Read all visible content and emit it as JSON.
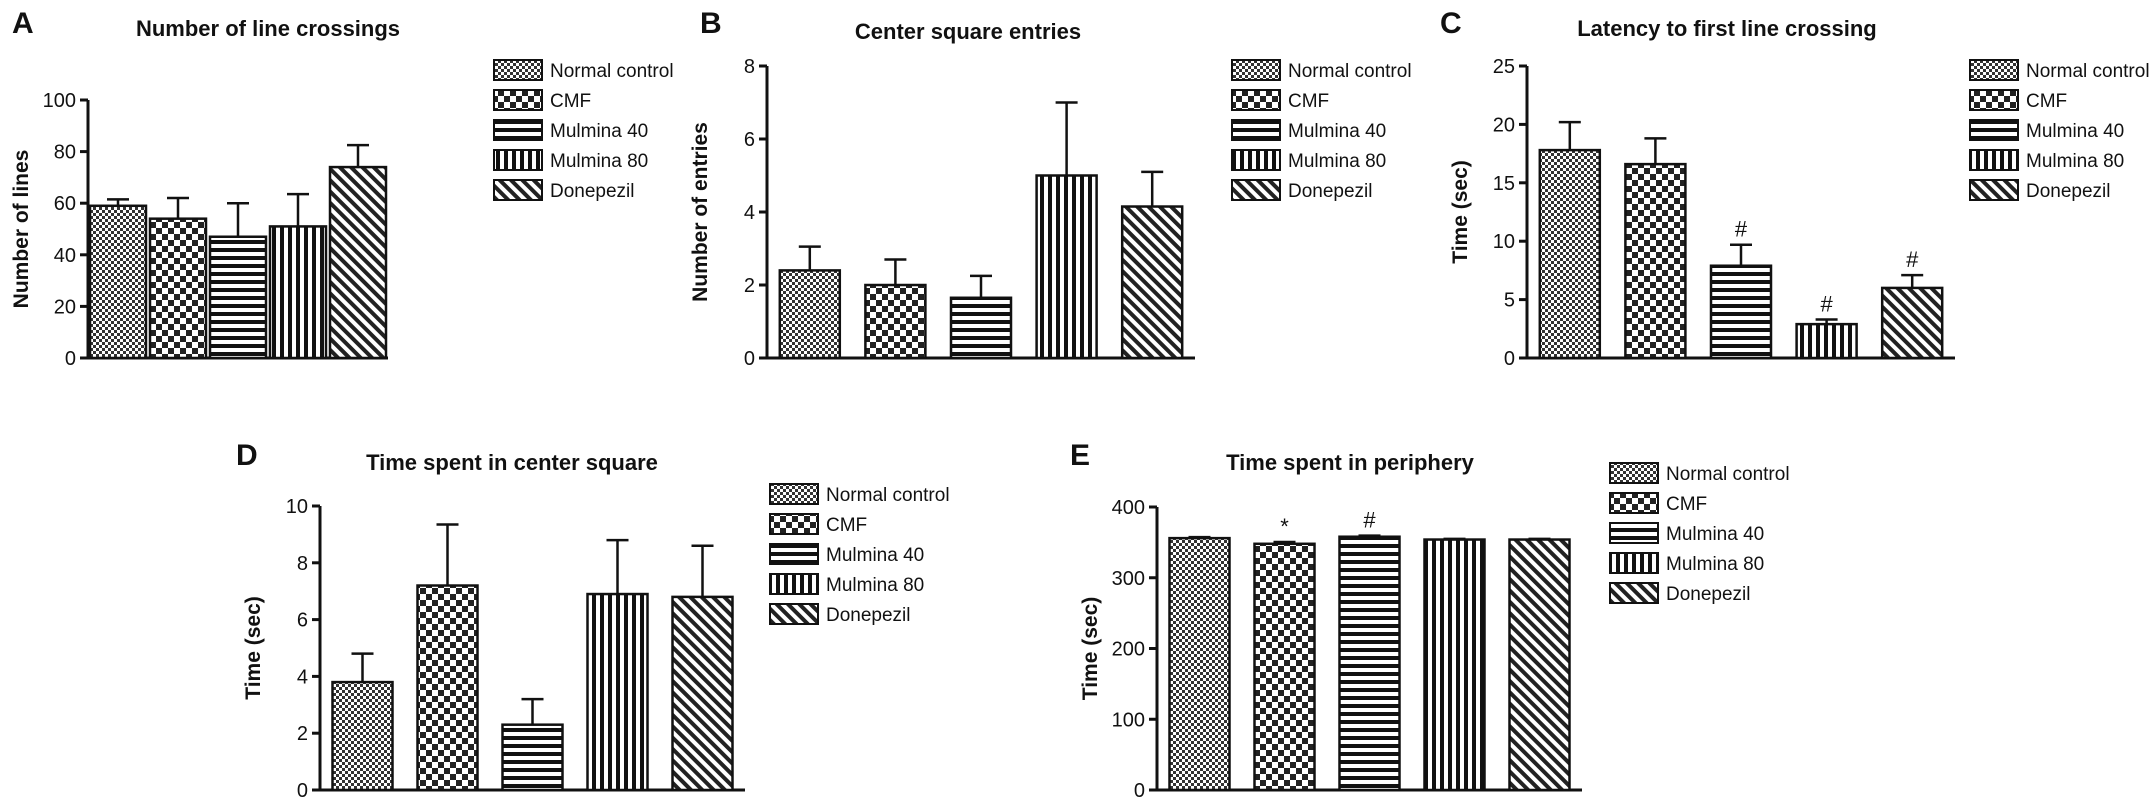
{
  "legend": [
    "Normal control",
    "CMF",
    "Mulmina 40",
    "Mulmina 80",
    "Donepezil"
  ],
  "chart_data": [
    {
      "panel": "A",
      "type": "bar",
      "title": "Number of line crossings",
      "ylabel": "Number of lines",
      "xlabel": "",
      "categories": [
        "Normal control",
        "CMF",
        "Mulmina 40",
        "Mulmina 80",
        "Donepezil"
      ],
      "values": [
        59,
        54,
        47,
        51,
        74
      ],
      "errors": [
        2.5,
        8,
        13,
        12.5,
        8.5
      ],
      "annotations": [
        "",
        "",
        "",
        "",
        ""
      ],
      "ylim": [
        0,
        100
      ],
      "yticks": [
        0,
        20,
        40,
        60,
        80,
        100
      ],
      "grid": false,
      "legend_position": "right"
    },
    {
      "panel": "B",
      "type": "bar",
      "title": "Center square entries",
      "ylabel": "Number of entries",
      "xlabel": "",
      "categories": [
        "Normal control",
        "CMF",
        "Mulmina 40",
        "Mulmina 80",
        "Donepezil"
      ],
      "values": [
        2.4,
        2.0,
        1.65,
        5.0,
        4.15
      ],
      "errors": [
        0.65,
        0.7,
        0.6,
        2.0,
        0.95
      ],
      "annotations": [
        "",
        "",
        "",
        "",
        ""
      ],
      "ylim": [
        0,
        8
      ],
      "yticks": [
        0,
        2,
        4,
        6,
        8
      ],
      "grid": false,
      "legend_position": "right"
    },
    {
      "panel": "C",
      "type": "bar",
      "title": "Latency to first line crossing",
      "ylabel": "Time (sec)",
      "xlabel": "",
      "categories": [
        "Normal control",
        "CMF",
        "Mulmina 40",
        "Mulmina 80",
        "Donepezil"
      ],
      "values": [
        17.8,
        16.6,
        7.9,
        2.9,
        6.0
      ],
      "errors": [
        2.4,
        2.2,
        1.8,
        0.4,
        1.1
      ],
      "annotations": [
        "",
        "",
        "#",
        "#",
        "#"
      ],
      "ylim": [
        0,
        25
      ],
      "yticks": [
        0,
        5,
        10,
        15,
        20,
        25
      ],
      "grid": false,
      "legend_position": "right"
    },
    {
      "panel": "D",
      "type": "bar",
      "title": "Time spent in center square",
      "ylabel": "Time (sec)",
      "xlabel": "",
      "categories": [
        "Normal control",
        "CMF",
        "Mulmina 40",
        "Mulmina 80",
        "Donepezil"
      ],
      "values": [
        3.8,
        7.2,
        2.3,
        6.9,
        6.8
      ],
      "errors": [
        1.0,
        2.15,
        0.9,
        1.9,
        1.8
      ],
      "annotations": [
        "",
        "",
        "",
        "",
        ""
      ],
      "ylim": [
        0,
        10
      ],
      "yticks": [
        0,
        2,
        4,
        6,
        8,
        10
      ],
      "grid": false,
      "legend_position": "right"
    },
    {
      "panel": "E",
      "type": "bar",
      "title": "Time spent in periphery",
      "ylabel": "Time (sec)",
      "xlabel": "",
      "categories": [
        "Normal control",
        "CMF",
        "Mulmina 40",
        "Mulmina 80",
        "Donepezil"
      ],
      "values": [
        356,
        348,
        358,
        354,
        354
      ],
      "errors": [
        1.5,
        2.5,
        1.5,
        1,
        1
      ],
      "annotations": [
        "",
        "*",
        "#",
        "",
        ""
      ],
      "ylim": [
        0,
        400
      ],
      "yticks": [
        0,
        100,
        200,
        300,
        400
      ],
      "grid": false,
      "legend_position": "right"
    }
  ]
}
